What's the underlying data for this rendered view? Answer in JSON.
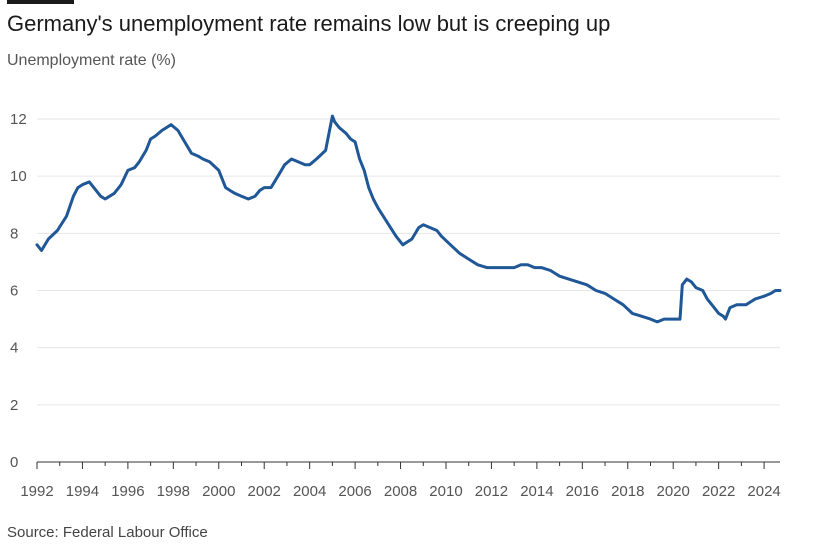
{
  "title": "Germany's unemployment rate remains low but is creeping up",
  "subtitle": "Unemployment rate (%)",
  "source": "Source: Federal Labour Office",
  "colors": {
    "line": "#1f5797",
    "grid": "#e6e6e6",
    "axis": "#333333"
  },
  "chart_data": {
    "type": "line",
    "title": "Germany's unemployment rate remains low but is creeping up",
    "ylabel": "Unemployment rate (%)",
    "xlabel": "",
    "xlim": [
      1992,
      2024.7
    ],
    "ylim": [
      0,
      12
    ],
    "grid": true,
    "legend": "none",
    "y_ticks": [
      "0",
      "2",
      "4",
      "6",
      "8",
      "10",
      "12"
    ],
    "x_ticks": [
      "1992",
      "1994",
      "1996",
      "1998",
      "2000",
      "2002",
      "2004",
      "2006",
      "2008",
      "2010",
      "2012",
      "2014",
      "2016",
      "2018",
      "2020",
      "2022",
      "2024"
    ],
    "series": [
      {
        "x": [
          1992.0,
          1992.2,
          1992.5,
          1992.9,
          1993.3,
          1993.6,
          1993.8,
          1994.0,
          1994.3,
          1994.5,
          1994.8,
          1995.0,
          1995.2,
          1995.4,
          1995.7,
          1996.0,
          1996.3,
          1996.5,
          1996.8,
          1997.0,
          1997.2,
          1997.5,
          1997.9,
          1998.2,
          1998.5,
          1998.8,
          1999.1,
          1999.3,
          1999.6,
          2000.0,
          2000.3,
          2000.5,
          2000.7,
          2001.0,
          2001.3,
          2001.6,
          2001.8,
          2002.0,
          2002.3,
          2002.6,
          2002.9,
          2003.2,
          2003.5,
          2003.8,
          2004.0,
          2004.3,
          2004.7,
          2004.9,
          2005.0,
          2005.1,
          2005.3,
          2005.6,
          2005.8,
          2006.0,
          2006.2,
          2006.4,
          2006.6,
          2006.8,
          2007.0,
          2007.4,
          2007.8,
          2008.1,
          2008.3,
          2008.5,
          2008.8,
          2009.0,
          2009.3,
          2009.6,
          2009.8,
          2010.2,
          2010.6,
          2011.0,
          2011.4,
          2011.8,
          2012.2,
          2012.6,
          2013.0,
          2013.3,
          2013.6,
          2013.9,
          2014.2,
          2014.6,
          2015.0,
          2015.4,
          2015.8,
          2016.2,
          2016.6,
          2017.0,
          2017.4,
          2017.8,
          2018.2,
          2018.6,
          2019.0,
          2019.3,
          2019.6,
          2019.9,
          2020.1,
          2020.3,
          2020.4,
          2020.6,
          2020.8,
          2021.0,
          2021.3,
          2021.5,
          2021.8,
          2022.0,
          2022.2,
          2022.3,
          2022.5,
          2022.8,
          2023.2,
          2023.6,
          2024.0,
          2024.3,
          2024.5,
          2024.7
        ],
        "y": [
          7.6,
          7.4,
          7.8,
          8.1,
          8.6,
          9.3,
          9.6,
          9.7,
          9.8,
          9.6,
          9.3,
          9.2,
          9.3,
          9.4,
          9.7,
          10.2,
          10.3,
          10.5,
          10.9,
          11.3,
          11.4,
          11.6,
          11.8,
          11.6,
          11.2,
          10.8,
          10.7,
          10.6,
          10.5,
          10.2,
          9.6,
          9.5,
          9.4,
          9.3,
          9.2,
          9.3,
          9.5,
          9.6,
          9.6,
          10.0,
          10.4,
          10.6,
          10.5,
          10.4,
          10.4,
          10.6,
          10.9,
          11.7,
          12.1,
          11.9,
          11.7,
          11.5,
          11.3,
          11.2,
          10.6,
          10.2,
          9.6,
          9.2,
          8.9,
          8.4,
          7.9,
          7.6,
          7.7,
          7.8,
          8.2,
          8.3,
          8.2,
          8.1,
          7.9,
          7.6,
          7.3,
          7.1,
          6.9,
          6.8,
          6.8,
          6.8,
          6.8,
          6.9,
          6.9,
          6.8,
          6.8,
          6.7,
          6.5,
          6.4,
          6.3,
          6.2,
          6.0,
          5.9,
          5.7,
          5.5,
          5.2,
          5.1,
          5.0,
          4.9,
          5.0,
          5.0,
          5.0,
          5.0,
          6.2,
          6.4,
          6.3,
          6.1,
          6.0,
          5.7,
          5.4,
          5.2,
          5.1,
          5.0,
          5.4,
          5.5,
          5.5,
          5.7,
          5.8,
          5.9,
          6.0,
          6.0
        ]
      }
    ]
  }
}
